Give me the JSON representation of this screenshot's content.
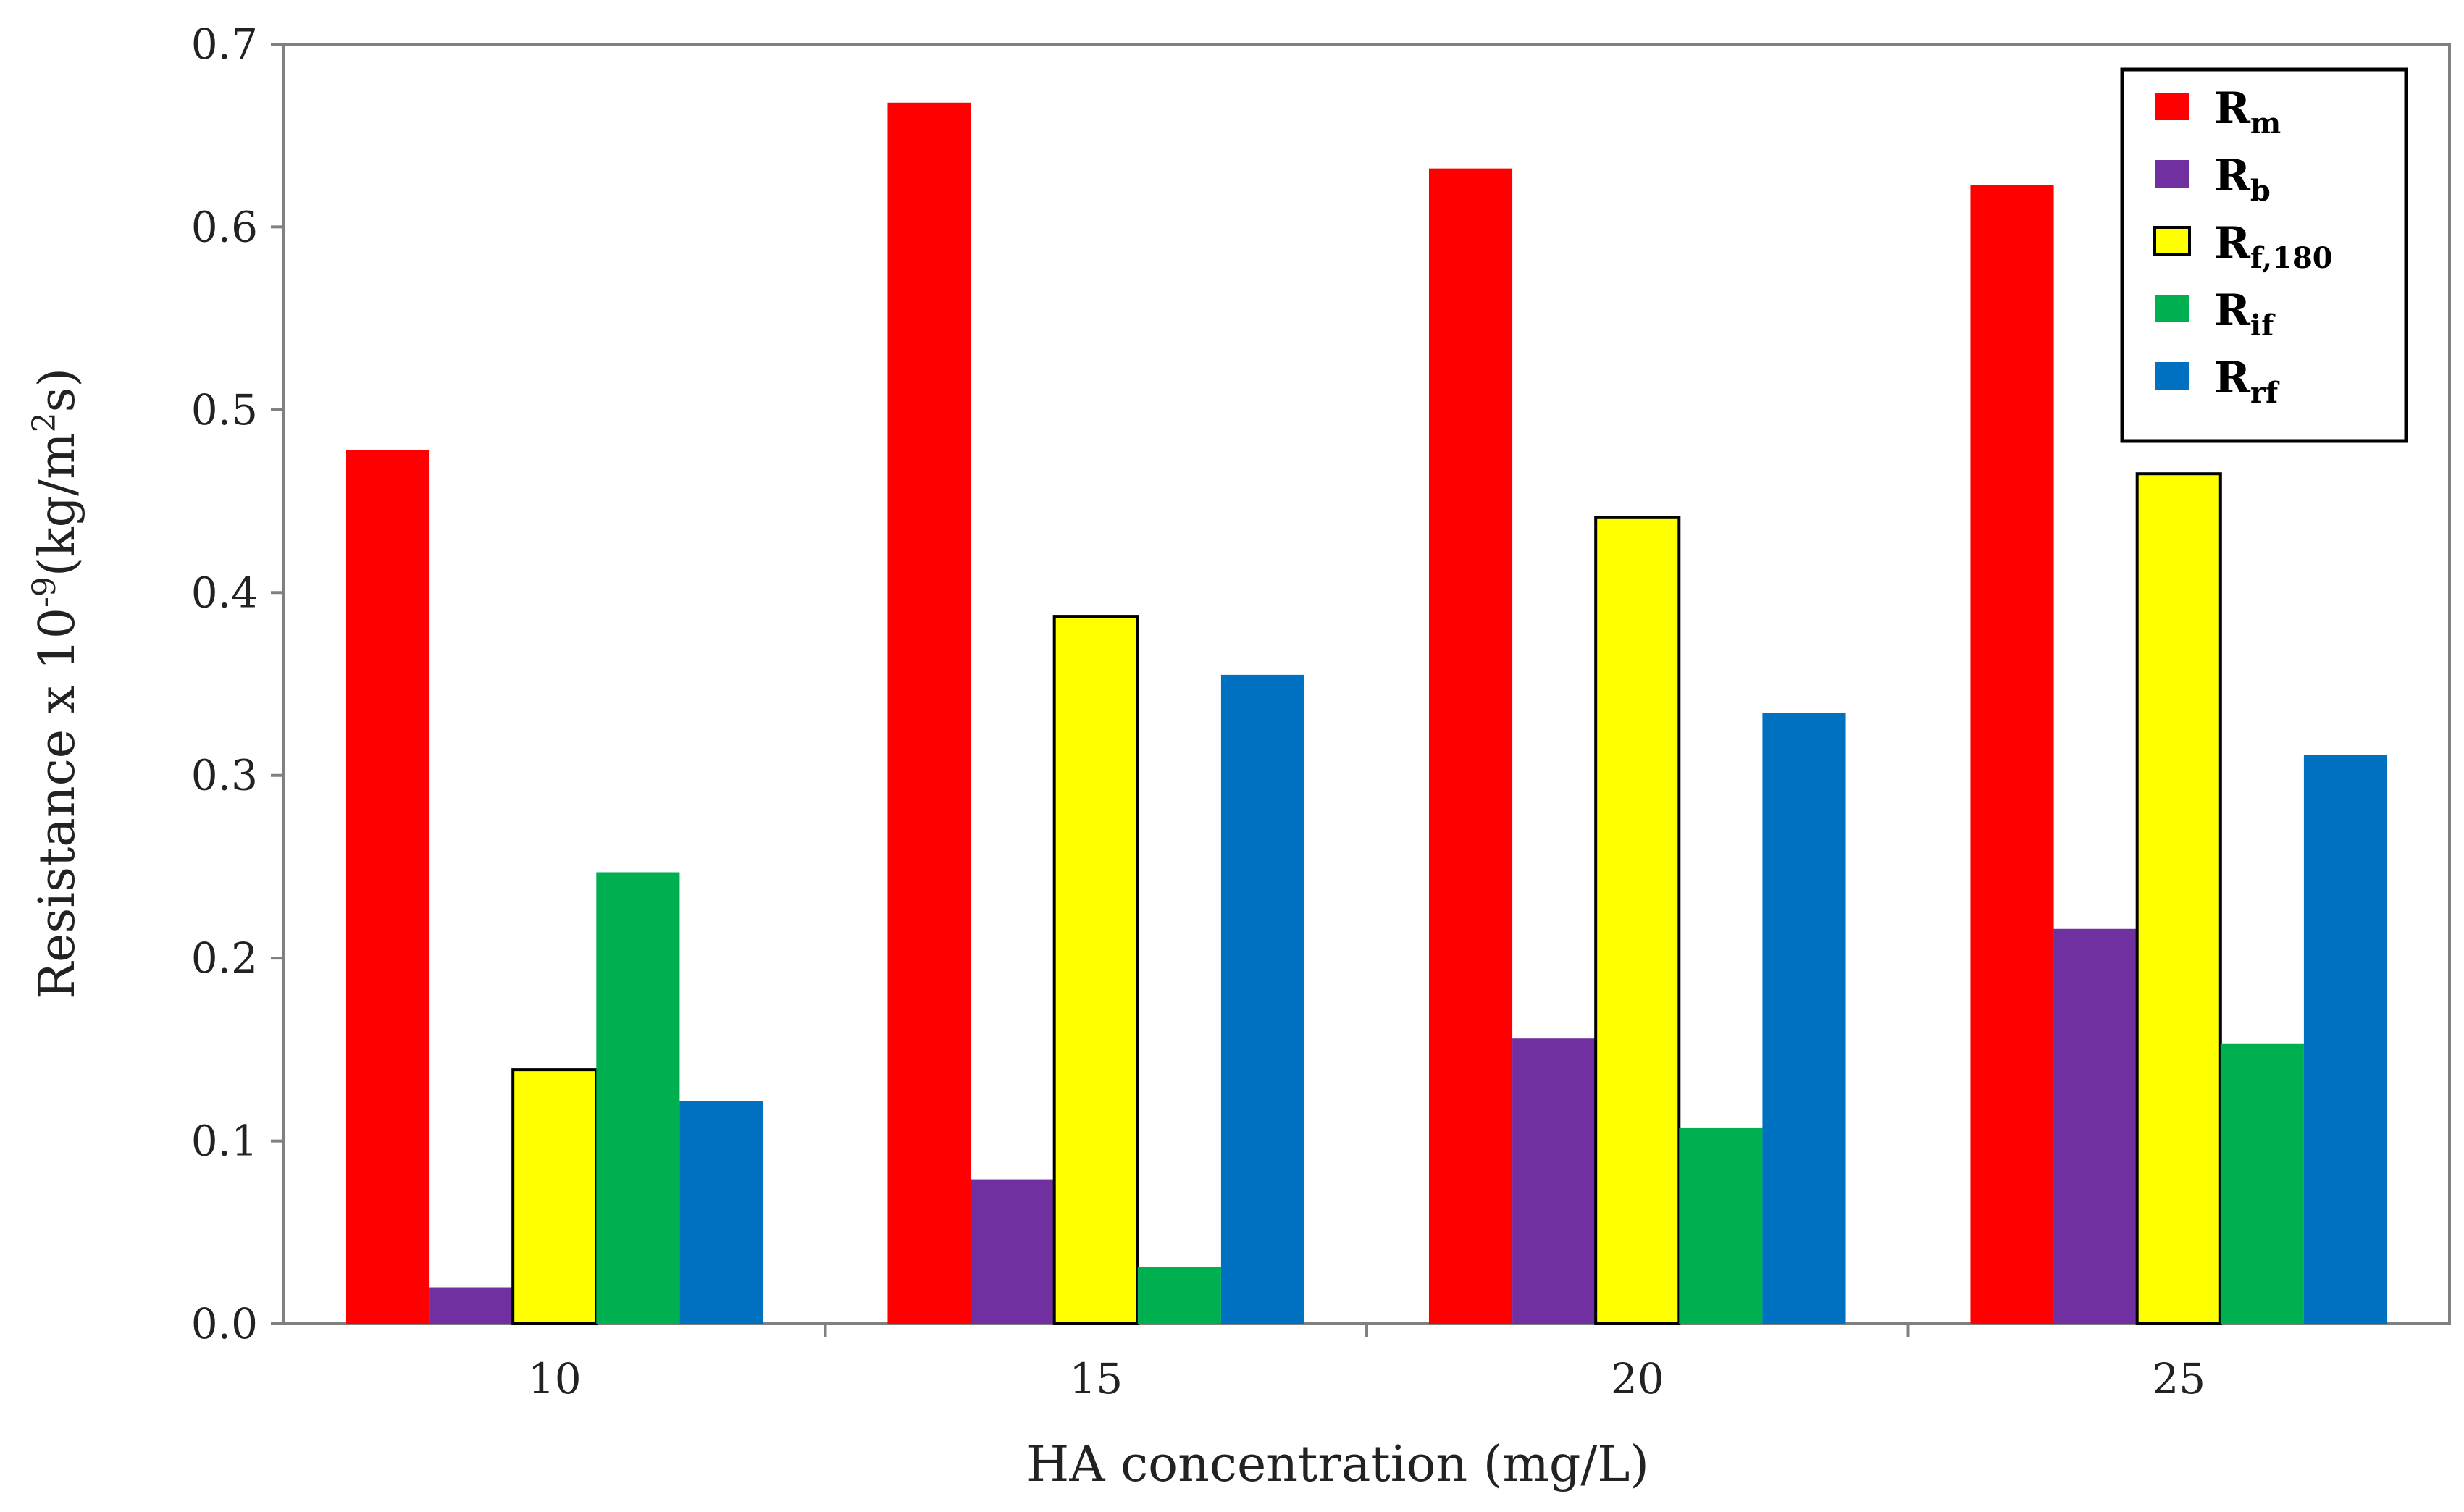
{
  "chart_data": {
    "type": "bar",
    "title": "",
    "xlabel": "HA concentration (mg/L)",
    "ylabel": {
      "text_before": "Resistance x 10",
      "exp": "-9",
      "text_middle": "(kg/m",
      "exp2": "2",
      "text_after": "s)"
    },
    "ylim": [
      0.0,
      0.7
    ],
    "yticks": [
      "0.0",
      "0.1",
      "0.2",
      "0.3",
      "0.4",
      "0.5",
      "0.6",
      "0.7"
    ],
    "categories": [
      "10",
      "15",
      "20",
      "25"
    ],
    "legend_position": "top-right",
    "series": [
      {
        "name": "R",
        "sub": "m",
        "color": "#ff0000",
        "outlined": false,
        "values": [
          0.478,
          0.668,
          0.632,
          0.623
        ]
      },
      {
        "name": "R",
        "sub": "b",
        "color": "#7030a0",
        "outlined": false,
        "values": [
          0.02,
          0.079,
          0.156,
          0.216
        ]
      },
      {
        "name": "R",
        "sub": "f,180",
        "color": "#ffff00",
        "outlined": true,
        "values": [
          0.139,
          0.387,
          0.441,
          0.465
        ]
      },
      {
        "name": "R",
        "sub": "if",
        "color": "#00b050",
        "outlined": false,
        "values": [
          0.247,
          0.031,
          0.107,
          0.153
        ]
      },
      {
        "name": "R",
        "sub": "rf",
        "color": "#0070c0",
        "outlined": false,
        "values": [
          0.122,
          0.355,
          0.334,
          0.311
        ]
      }
    ]
  }
}
